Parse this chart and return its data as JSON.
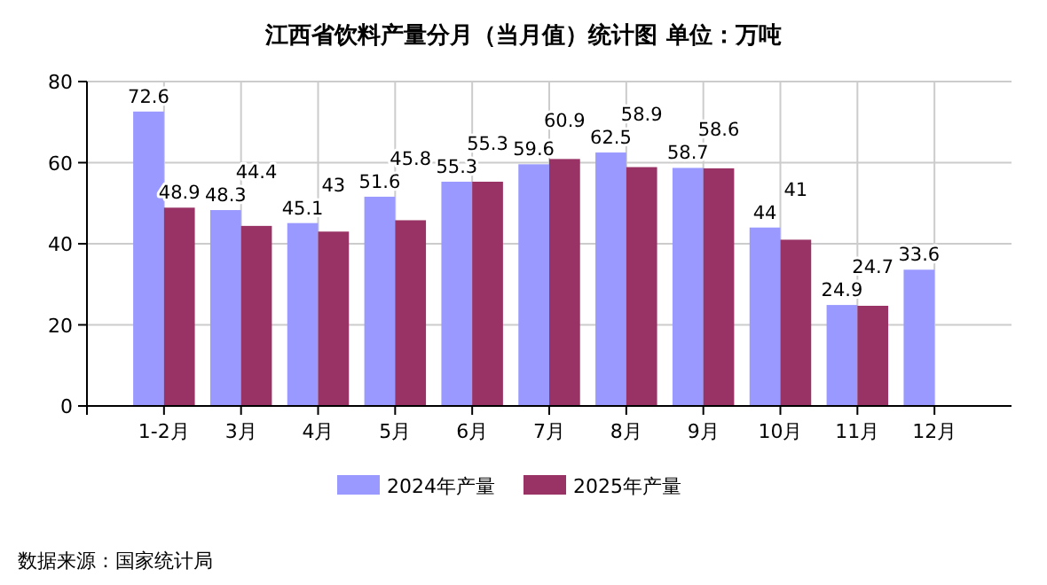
{
  "chart_data": {
    "type": "bar",
    "title": "江西省饮料产量分月（当月值）统计图 单位：万吨",
    "categories": [
      "1-2月",
      "3月",
      "4月",
      "5月",
      "6月",
      "7月",
      "8月",
      "9月",
      "10月",
      "11月",
      "12月"
    ],
    "series": [
      {
        "name": "2024年产量",
        "color": "#9999ff",
        "values": [
          72.6,
          48.3,
          45.1,
          51.6,
          55.3,
          59.6,
          62.5,
          58.7,
          44,
          24.9,
          33.6
        ]
      },
      {
        "name": "2025年产量",
        "color": "#993366",
        "values": [
          48.9,
          44.4,
          43,
          45.8,
          55.3,
          60.9,
          58.9,
          58.6,
          41,
          24.7,
          null
        ]
      }
    ],
    "ylim": [
      0,
      80
    ],
    "yticks": [
      0,
      20,
      40,
      60,
      80
    ],
    "grid": true,
    "legend": "bottom",
    "data_labels": true,
    "annotations": [
      "数据来源：国家统计局"
    ]
  }
}
